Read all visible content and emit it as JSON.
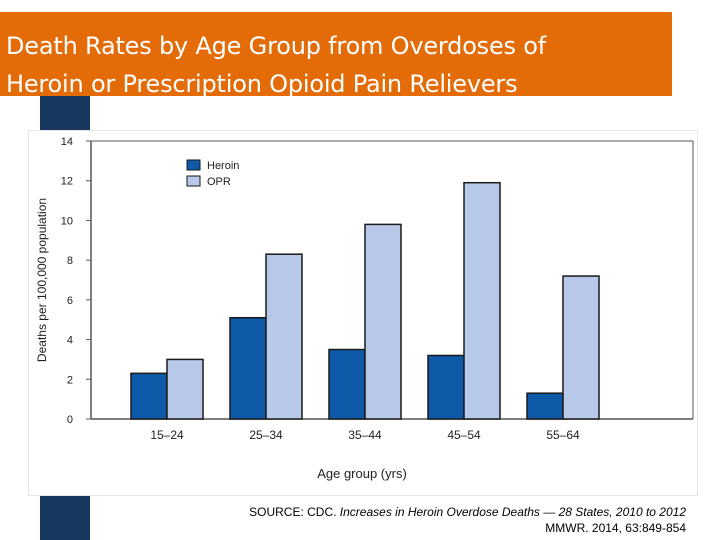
{
  "slide": {
    "title_line1": "Death Rates by Age Group from Overdoses of",
    "title_line2": "Heroin or Prescription Opioid Pain Relievers",
    "source_prefix": "SOURCE: CDC. ",
    "source_italic": "Increases in Heroin Overdose Deaths — 28 States, 2010 to 2012",
    "source_line2": "MMWR. 2014, 63:849-854"
  },
  "colors": {
    "title_bg": "#e36c09",
    "left_bar": "#17375e",
    "heroin": "#0f5aa8",
    "opr": "#b8c8e8"
  },
  "chart_data": {
    "type": "bar",
    "categories": [
      "15–24",
      "25–34",
      "35–44",
      "45–54",
      "55–64"
    ],
    "series": [
      {
        "name": "Heroin",
        "values": [
          2.3,
          5.1,
          3.5,
          3.2,
          1.3
        ]
      },
      {
        "name": "OPR",
        "values": [
          3.0,
          8.3,
          9.8,
          11.9,
          7.2
        ]
      }
    ],
    "xlabel": "Age group (yrs)",
    "ylabel": "Deaths per 100,000 population",
    "ylim": [
      0,
      14
    ],
    "yticks": [
      0,
      2,
      4,
      6,
      8,
      10,
      12,
      14
    ],
    "legend": "top-left"
  }
}
